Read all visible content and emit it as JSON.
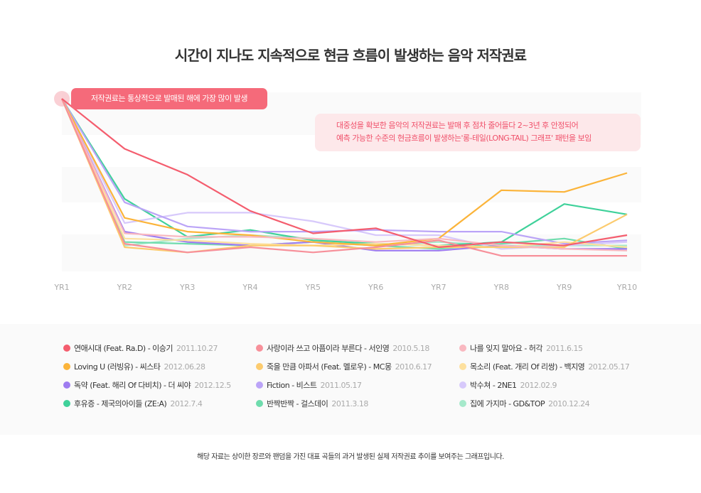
{
  "title": "시간이 지나도 지속적으로 현금 흐름이 발생하는 음악 저작권료",
  "callouts": {
    "peak": "저작권료는 통상적으로 발매된 해에 가장 많이 발생",
    "longtail_line1": "대중성을 확보한 음악의 저작권료는 발매 후 점차 줄어들다 2~3년 후 안정되어",
    "longtail_line2": "예측 가능한 수준의 현금흐름이 발생하는'롱-테일(LONG-TAIL) 그래프' 패턴을 보임"
  },
  "footnote": "해당 자료는 상이한 장르와 팬덤을 가진 대표 곡들의 과거 발생된 실제 저작권료 추이를 보여주는 그래프입니다.",
  "chart_data": {
    "type": "line",
    "title": "시간이 지나도 지속적으로 현금 흐름이 발생하는 음악 저작권료",
    "xlabel": "",
    "ylabel": "",
    "ylim": [
      0,
      100
    ],
    "grid": true,
    "legend_placement": "bottom",
    "categories": [
      "YR1",
      "YR2",
      "YR3",
      "YR4",
      "YR5",
      "YR6",
      "YR7",
      "YR8",
      "YR9",
      "YR10"
    ],
    "series": [
      {
        "name": "연애시대 (Feat. Ra.D)  - 이승기",
        "date": "2011.10.27",
        "color": "#f45d6e",
        "values": [
          100,
          71,
          56,
          35,
          22,
          25,
          14,
          17,
          15,
          21
        ]
      },
      {
        "name": "사랑이라 쓰고 아픔이라 부른다 - 서인영",
        "date": "2010.5.18",
        "color": "#f7909a",
        "values": [
          100,
          16,
          11,
          14,
          11,
          14,
          18,
          9,
          9,
          9
        ]
      },
      {
        "name": "나를 잊지 말아요 - 허각",
        "date": "2011.6.15",
        "color": "#f9b8c0",
        "values": [
          100,
          22,
          20,
          20,
          19,
          17,
          19,
          15,
          13,
          12
        ]
      },
      {
        "name": "Loving U (러빙유) - 씨스타",
        "date": "2012.06.28",
        "color": "#fbb43a",
        "values": [
          100,
          31,
          23,
          21,
          17,
          15,
          19,
          47,
          46,
          57
        ]
      },
      {
        "name": "죽을 만큼 아파서 (Feat. 멜로우) - MC몽",
        "date": "2010.6.17",
        "color": "#fccb6e",
        "values": [
          100,
          14,
          11,
          15,
          15,
          13,
          14,
          14,
          14,
          33
        ]
      },
      {
        "name": "목소리 (Feat. 개리 Of 리쌍) - 백지영",
        "date": "2012.05.17",
        "color": "#fde09e",
        "values": [
          100,
          19,
          18,
          16,
          15,
          16,
          15,
          14,
          17,
          14
        ]
      },
      {
        "name": "독약 (Feat. 해리 Of 다비치) - 더 씨야",
        "date": "2012.12.5",
        "color": "#9e7cf0",
        "values": [
          100,
          23,
          17,
          15,
          17,
          12,
          12,
          15,
          13,
          13
        ]
      },
      {
        "name": "Fiction - 비스트",
        "date": "2011.05.17",
        "color": "#bba4f7",
        "values": [
          100,
          40,
          26,
          23,
          23,
          24,
          23,
          23,
          16,
          18
        ]
      },
      {
        "name": "박수쳐 - 2NE1",
        "date": "2012.02.9",
        "color": "#d7c9fb",
        "values": [
          100,
          28,
          34,
          34,
          29,
          21,
          21,
          13,
          15,
          17
        ]
      },
      {
        "name": "후유증 - 제국의아이들 (ZE:A)",
        "date": "2012.7.4",
        "color": "#3fd19a",
        "values": [
          100,
          42,
          20,
          24,
          18,
          16,
          15,
          17,
          39,
          33
        ]
      },
      {
        "name": "반짝반짝 - 걸스데이",
        "date": "2011.3.18",
        "color": "#6fdcad",
        "values": [
          100,
          17,
          16,
          15,
          17,
          15,
          13,
          16,
          19,
          13
        ]
      },
      {
        "name": "집에 가지마 - GD&TOP",
        "date": "2010.12.24",
        "color": "#a6e9cb",
        "values": [
          100,
          15,
          19,
          21,
          19,
          15,
          17,
          15,
          15,
          15
        ]
      }
    ]
  }
}
